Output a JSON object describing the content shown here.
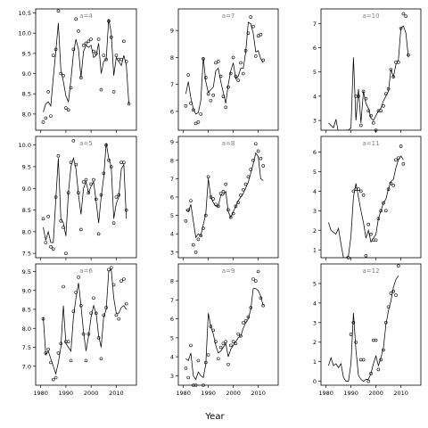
{
  "figure": {
    "xlabel": "Year",
    "x_ticks": [
      1980,
      1990,
      2000,
      2010
    ],
    "x_tick_labels": [
      "1980",
      "1990",
      "2000",
      "2010"
    ],
    "xlim": [
      1978,
      2018
    ]
  },
  "chart_data": [
    {
      "type": "scatter",
      "label": "a=4",
      "ylim": [
        7.6,
        10.6
      ],
      "y_ticks": [
        8.0,
        8.5,
        9.0,
        9.5,
        10.0,
        10.5
      ],
      "y_tick_labels": [
        "8.0",
        "8.5",
        "9.0",
        "9.5",
        "10.0",
        "10.5"
      ],
      "x_tick_labels_shown": false,
      "x": [
        1981,
        1982,
        1983,
        1984,
        1985,
        1986,
        1987,
        1988,
        1989,
        1990,
        1991,
        1992,
        1993,
        1994,
        1995,
        1996,
        1997,
        1998,
        1999,
        2000,
        2001,
        2002,
        2003,
        2004,
        2005,
        2006,
        2007,
        2008,
        2009,
        2010,
        2011,
        2012,
        2013,
        2014,
        2015,
        2016
      ],
      "points": [
        7.8,
        7.9,
        8.55,
        7.95,
        9.45,
        9.6,
        10.55,
        9.0,
        8.95,
        8.15,
        8.1,
        8.65,
        9.6,
        10.35,
        10.05,
        8.9,
        9.7,
        9.75,
        9.8,
        9.85,
        9.55,
        9.5,
        9.85,
        8.6,
        9.45,
        9.35,
        10.3,
        9.9,
        8.55,
        9.45,
        9.35,
        9.35,
        9.8,
        9.3,
        8.25,
        null
      ],
      "fitted": [
        8.05,
        8.25,
        8.3,
        8.2,
        8.9,
        9.55,
        10.25,
        9.1,
        8.8,
        8.45,
        8.3,
        8.85,
        9.5,
        9.85,
        9.6,
        8.9,
        9.55,
        9.7,
        9.65,
        9.7,
        9.4,
        9.45,
        9.75,
        9.0,
        9.3,
        9.35,
        10.35,
        10.0,
        8.95,
        9.4,
        9.3,
        9.2,
        9.45,
        9.2,
        8.25,
        null
      ]
    },
    {
      "type": "scatter",
      "label": "a=7",
      "ylim": [
        5.3,
        9.8
      ],
      "y_ticks": [
        6,
        7,
        8,
        9
      ],
      "y_tick_labels": [
        "6",
        "7",
        "8",
        "9"
      ],
      "x_tick_labels_shown": false,
      "x": [
        1981,
        1982,
        1983,
        1984,
        1985,
        1986,
        1987,
        1988,
        1989,
        1990,
        1991,
        1992,
        1993,
        1994,
        1995,
        1996,
        1997,
        1998,
        1999,
        2000,
        2001,
        2002,
        2003,
        2004,
        2005,
        2006,
        2007,
        2008,
        2009,
        2010,
        2011,
        2012,
        2013,
        2014,
        2015,
        2016
      ],
      "points": [
        6.2,
        7.35,
        6.3,
        6.05,
        5.55,
        5.6,
        5.9,
        7.95,
        7.25,
        6.65,
        6.4,
        6.6,
        7.8,
        7.85,
        7.3,
        6.55,
        6.15,
        6.9,
        7.4,
        8.0,
        7.3,
        7.15,
        7.8,
        7.4,
        8.25,
        8.9,
        9.5,
        9.15,
        8.05,
        8.8,
        8.85,
        7.9,
        null,
        null,
        null,
        null
      ],
      "fitted": [
        6.65,
        7.1,
        6.5,
        6.1,
        5.9,
        5.95,
        6.4,
        8.0,
        7.1,
        6.7,
        6.8,
        6.9,
        7.5,
        7.6,
        7.1,
        6.7,
        6.3,
        7.0,
        7.5,
        7.8,
        7.2,
        7.3,
        7.6,
        7.6,
        8.2,
        9.3,
        9.25,
        8.9,
        8.2,
        8.25,
        7.95,
        7.8,
        null,
        null,
        null,
        null
      ]
    },
    {
      "type": "scatter",
      "label": "a=10",
      "ylim": [
        2.6,
        7.6
      ],
      "y_ticks": [
        3,
        4,
        5,
        6,
        7
      ],
      "y_tick_labels": [
        "3",
        "4",
        "5",
        "6",
        "7"
      ],
      "x_tick_labels_shown": false,
      "x": [
        1981,
        1982,
        1983,
        1984,
        1985,
        1986,
        1987,
        1988,
        1989,
        1990,
        1991,
        1992,
        1993,
        1994,
        1995,
        1996,
        1997,
        1998,
        1999,
        2000,
        2001,
        2002,
        2003,
        2004,
        2005,
        2006,
        2007,
        2008,
        2009,
        2010,
        2011,
        2012,
        2013,
        2014,
        2015,
        2016
      ],
      "points": [
        null,
        null,
        null,
        null,
        null,
        null,
        null,
        null,
        null,
        null,
        null,
        4.0,
        4.0,
        2.8,
        4.2,
        3.9,
        3.4,
        3.2,
        2.9,
        2.6,
        3.4,
        3.4,
        3.6,
        4.1,
        4.3,
        5.1,
        4.8,
        5.4,
        5.4,
        6.8,
        7.4,
        7.3,
        5.7,
        null,
        null,
        null
      ],
      "fitted": [
        2.9,
        2.8,
        2.7,
        3.05,
        2.5,
        2.5,
        2.5,
        2.6,
        2.6,
        2.7,
        5.6,
        3.0,
        4.3,
        2.9,
        4.2,
        3.7,
        3.5,
        3.1,
        3.0,
        3.2,
        3.4,
        3.5,
        3.8,
        4.0,
        4.2,
        5.1,
        4.8,
        5.3,
        5.5,
        6.8,
        6.9,
        6.6,
        5.6,
        null,
        null,
        null
      ]
    },
    {
      "type": "scatter",
      "label": "a=5",
      "ylim": [
        7.4,
        10.2
      ],
      "y_ticks": [
        7.5,
        8.0,
        8.5,
        9.0,
        9.5,
        10.0
      ],
      "y_tick_labels": [
        "7.5",
        "8.0",
        "8.5",
        "9.0",
        "9.5",
        "10.0"
      ],
      "x_tick_labels_shown": false,
      "x": [
        1981,
        1982,
        1983,
        1984,
        1985,
        1986,
        1987,
        1988,
        1989,
        1990,
        1991,
        1992,
        1993,
        1994,
        1995,
        1996,
        1997,
        1998,
        1999,
        2000,
        2001,
        2002,
        2003,
        2004,
        2005,
        2006,
        2007,
        2008,
        2009,
        2010,
        2011,
        2012,
        2013,
        2014,
        2015,
        2016
      ],
      "points": [
        8.3,
        7.75,
        8.35,
        7.65,
        7.6,
        8.8,
        9.75,
        8.25,
        8.1,
        7.5,
        8.9,
        9.6,
        10.1,
        9.55,
        8.9,
        8.05,
        9.15,
        9.2,
        8.9,
        9.1,
        9.2,
        8.75,
        7.95,
        8.85,
        9.35,
        10.0,
        9.65,
        9.5,
        8.2,
        8.8,
        8.85,
        9.6,
        9.6,
        8.5,
        null,
        null
      ],
      "fitted": [
        8.1,
        7.8,
        8.0,
        7.75,
        7.75,
        8.75,
        9.7,
        8.3,
        8.2,
        7.9,
        8.9,
        9.5,
        9.7,
        9.45,
        8.85,
        8.4,
        9.0,
        9.15,
        8.9,
        9.05,
        9.15,
        8.7,
        8.2,
        8.8,
        9.25,
        10.05,
        9.7,
        9.5,
        8.3,
        8.65,
        8.8,
        9.45,
        9.55,
        8.3,
        null,
        null
      ]
    },
    {
      "type": "scatter",
      "label": "a=8",
      "ylim": [
        2.7,
        9.3
      ],
      "y_ticks": [
        3,
        4,
        5,
        6,
        7,
        8,
        9
      ],
      "y_tick_labels": [
        "3",
        "4",
        "5",
        "6",
        "7",
        "8",
        "9"
      ],
      "x_tick_labels_shown": false,
      "x": [
        1981,
        1982,
        1983,
        1984,
        1985,
        1986,
        1987,
        1988,
        1989,
        1990,
        1991,
        1992,
        1993,
        1994,
        1995,
        1996,
        1997,
        1998,
        1999,
        2000,
        2001,
        2002,
        2003,
        2004,
        2005,
        2006,
        2007,
        2008,
        2009,
        2010,
        2011,
        2012,
        2013,
        2014,
        2015,
        2016
      ],
      "points": [
        4.7,
        5.3,
        5.8,
        3.4,
        3.0,
        3.7,
        3.9,
        4.3,
        5.0,
        7.1,
        6.0,
        5.9,
        5.6,
        5.5,
        6.2,
        6.3,
        6.7,
        5.3,
        4.9,
        5.1,
        5.5,
        5.7,
        6.1,
        6.4,
        6.7,
        7.1,
        7.5,
        8.0,
        8.9,
        8.5,
        8.1,
        7.7,
        null,
        null,
        null,
        null
      ],
      "fitted": [
        5.3,
        5.2,
        5.6,
        4.7,
        3.8,
        4.0,
        3.9,
        4.5,
        5.1,
        7.0,
        6.0,
        5.7,
        5.5,
        5.5,
        6.1,
        6.1,
        6.3,
        5.2,
        4.9,
        5.2,
        5.5,
        5.8,
        6.0,
        6.2,
        6.5,
        6.8,
        7.3,
        7.8,
        8.4,
        8.2,
        7.0,
        6.9,
        null,
        null,
        null,
        null
      ]
    },
    {
      "type": "scatter",
      "label": "a=11",
      "ylim": [
        0.6,
        6.8
      ],
      "y_ticks": [
        1,
        2,
        3,
        4,
        5,
        6
      ],
      "y_tick_labels": [
        "1",
        "2",
        "3",
        "4",
        "5",
        "6"
      ],
      "x_tick_labels_shown": false,
      "x": [
        1981,
        1982,
        1983,
        1984,
        1985,
        1986,
        1987,
        1988,
        1989,
        1990,
        1991,
        1992,
        1993,
        1994,
        1995,
        1996,
        1997,
        1998,
        1999,
        2000,
        2001,
        2002,
        2003,
        2004,
        2005,
        2006,
        2007,
        2008,
        2009,
        2010,
        2011,
        2012,
        2013,
        2014,
        2015,
        2016
      ],
      "points": [
        null,
        null,
        null,
        null,
        null,
        null,
        null,
        null,
        0.6,
        null,
        4.0,
        4.1,
        4.1,
        4.0,
        3.8,
        0.7,
        2.3,
        1.8,
        1.5,
        1.5,
        2.6,
        3.0,
        3.4,
        3.0,
        4.1,
        4.4,
        4.3,
        5.6,
        5.7,
        6.3,
        5.4,
        null,
        null,
        null,
        null,
        null
      ],
      "fitted": [
        2.4,
        2.0,
        1.9,
        1.8,
        2.1,
        1.3,
        0.6,
        0.6,
        0.7,
        1.7,
        3.7,
        4.4,
        3.7,
        3.0,
        2.4,
        1.6,
        2.0,
        1.4,
        1.6,
        1.8,
        2.6,
        3.0,
        3.4,
        3.6,
        4.1,
        4.5,
        4.6,
        5.2,
        5.6,
        5.8,
        5.6,
        null,
        null,
        null,
        null,
        null
      ]
    },
    {
      "type": "scatter",
      "label": "a=6",
      "ylim": [
        6.5,
        9.7
      ],
      "y_ticks": [
        7.0,
        7.5,
        8.0,
        8.5,
        9.0,
        9.5
      ],
      "y_tick_labels": [
        "7.0",
        "7.5",
        "8.0",
        "8.5",
        "9.0",
        "9.5"
      ],
      "x_tick_labels_shown": true,
      "x": [
        1981,
        1982,
        1983,
        1984,
        1985,
        1986,
        1987,
        1988,
        1989,
        1990,
        1991,
        1992,
        1993,
        1994,
        1995,
        1996,
        1997,
        1998,
        1999,
        2000,
        2001,
        2002,
        2003,
        2004,
        2005,
        2006,
        2007,
        2008,
        2009,
        2010,
        2011,
        2012,
        2013,
        2014,
        2015,
        2016
      ],
      "points": [
        8.25,
        7.35,
        7.45,
        7.1,
        6.65,
        6.7,
        7.35,
        7.6,
        9.1,
        7.65,
        7.65,
        7.15,
        8.45,
        8.95,
        9.35,
        8.6,
        7.85,
        7.15,
        7.85,
        8.4,
        8.8,
        8.4,
        7.75,
        7.2,
        8.35,
        8.55,
        9.55,
        9.6,
        9.15,
        8.35,
        8.25,
        9.25,
        9.3,
        8.65,
        null,
        null
      ],
      "fitted": [
        8.3,
        7.3,
        7.4,
        7.2,
        7.0,
        6.8,
        7.1,
        7.5,
        8.6,
        7.6,
        7.5,
        7.4,
        8.3,
        8.8,
        9.2,
        8.6,
        7.9,
        7.4,
        7.8,
        8.3,
        8.6,
        8.4,
        7.8,
        7.5,
        8.3,
        8.5,
        9.5,
        9.55,
        8.8,
        8.4,
        8.4,
        8.55,
        8.6,
        8.5,
        null,
        null
      ]
    },
    {
      "type": "scatter",
      "label": "a=9",
      "ylim": [
        2.5,
        8.9
      ],
      "y_ticks": [
        3,
        4,
        5,
        6,
        7,
        8
      ],
      "y_tick_labels": [
        "3",
        "4",
        "5",
        "6",
        "7",
        "8"
      ],
      "x_tick_labels_shown": true,
      "x": [
        1981,
        1982,
        1983,
        1984,
        1985,
        1986,
        1987,
        1988,
        1989,
        1990,
        1991,
        1992,
        1993,
        1994,
        1995,
        1996,
        1997,
        1998,
        1999,
        2000,
        2001,
        2002,
        2003,
        2004,
        2005,
        2006,
        2007,
        2008,
        2009,
        2010,
        2011,
        2012,
        2013,
        2014,
        2015,
        2016
      ],
      "points": [
        3.4,
        2.9,
        4.6,
        2.5,
        2.5,
        3.8,
        null,
        2.5,
        3.7,
        4.1,
        5.6,
        5.4,
        4.8,
        3.9,
        4.5,
        4.7,
        4.8,
        3.6,
        4.6,
        4.8,
        4.7,
        5.2,
        5.1,
        5.8,
        5.9,
        6.1,
        6.6,
        8.1,
        8.0,
        8.5,
        7.1,
        6.7,
        null,
        null,
        null,
        null
      ],
      "fitted": [
        3.9,
        3.8,
        4.2,
        3.0,
        2.8,
        3.2,
        3.0,
        2.9,
        3.6,
        6.3,
        5.6,
        5.2,
        4.6,
        4.2,
        4.3,
        4.5,
        4.7,
        4.0,
        4.4,
        4.6,
        4.8,
        5.0,
        5.1,
        5.5,
        5.8,
        6.0,
        6.5,
        7.6,
        7.6,
        7.5,
        7.2,
        6.7,
        null,
        null,
        null,
        null
      ]
    },
    {
      "type": "scatter",
      "label": "a=12",
      "ylim": [
        -0.2,
        6.0
      ],
      "y_ticks": [
        0,
        1,
        2,
        3,
        4,
        5
      ],
      "y_tick_labels": [
        "0",
        "1",
        "2",
        "3",
        "4",
        "5"
      ],
      "x_tick_labels_shown": true,
      "x": [
        1981,
        1982,
        1983,
        1984,
        1985,
        1986,
        1987,
        1988,
        1989,
        1990,
        1991,
        1992,
        1993,
        1994,
        1995,
        1996,
        1997,
        1998,
        1999,
        2000,
        2001,
        2002,
        2003,
        2004,
        2005,
        2006,
        2007,
        2008,
        2009,
        2010,
        2011,
        2012,
        2013,
        2014,
        2015,
        2016
      ],
      "points": [
        null,
        null,
        null,
        null,
        null,
        null,
        null,
        null,
        null,
        2.4,
        3.0,
        2.0,
        null,
        1.1,
        1.1,
        null,
        0.0,
        0.4,
        2.1,
        2.1,
        0.6,
        1.1,
        1.6,
        3.0,
        3.8,
        4.5,
        4.6,
        4.4,
        5.9,
        null,
        null,
        null,
        null,
        null,
        null,
        null
      ],
      "fitted": [
        0.8,
        1.2,
        0.8,
        0.9,
        0.7,
        0.9,
        0.2,
        0.0,
        0.0,
        0.9,
        3.5,
        1.6,
        0.3,
        0.1,
        0.0,
        0.1,
        0.1,
        0.4,
        0.9,
        1.3,
        0.8,
        1.2,
        1.7,
        2.9,
        3.6,
        4.1,
        4.8,
        5.2,
        5.4,
        null,
        null,
        null,
        null,
        null,
        null,
        null
      ]
    }
  ]
}
